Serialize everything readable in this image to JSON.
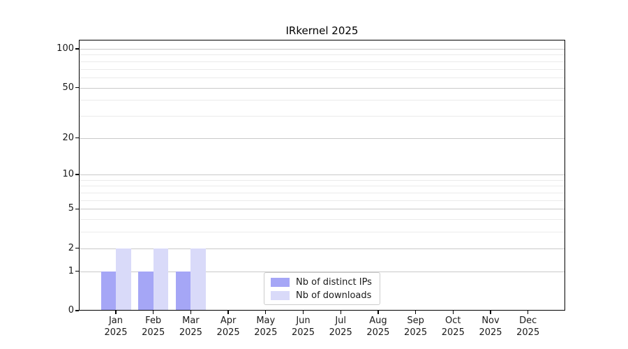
{
  "chart_data": {
    "type": "bar",
    "title": "IRkernel 2025",
    "x": {
      "months": [
        "Jan",
        "Feb",
        "Mar",
        "Apr",
        "May",
        "Jun",
        "Jul",
        "Aug",
        "Sep",
        "Oct",
        "Nov",
        "Dec"
      ],
      "year": "2025"
    },
    "series": [
      {
        "name": "Nb of distinct IPs",
        "color": "#a5a6f6",
        "values": [
          1,
          1,
          1,
          0,
          0,
          0,
          0,
          0,
          0,
          0,
          0,
          0
        ]
      },
      {
        "name": "Nb of downloads",
        "color": "#d9daf9",
        "values": [
          2,
          2,
          2,
          0,
          0,
          0,
          0,
          0,
          0,
          0,
          0,
          0
        ]
      }
    ],
    "yscale": "log1p",
    "ylim": [
      0,
      117
    ],
    "y_major_ticks": [
      0,
      1,
      2,
      5,
      10,
      20,
      50,
      100
    ],
    "y_minor_ticks": [
      3,
      4,
      6,
      7,
      8,
      9,
      30,
      40,
      60,
      70,
      80,
      90
    ],
    "grid": true,
    "legend_position": "lower center",
    "colors": {
      "axis": "#000000",
      "grid_major": "#c9c9c9",
      "grid_minor": "#ebebeb",
      "background": "#ffffff",
      "legend_border": "#cccccc"
    }
  }
}
